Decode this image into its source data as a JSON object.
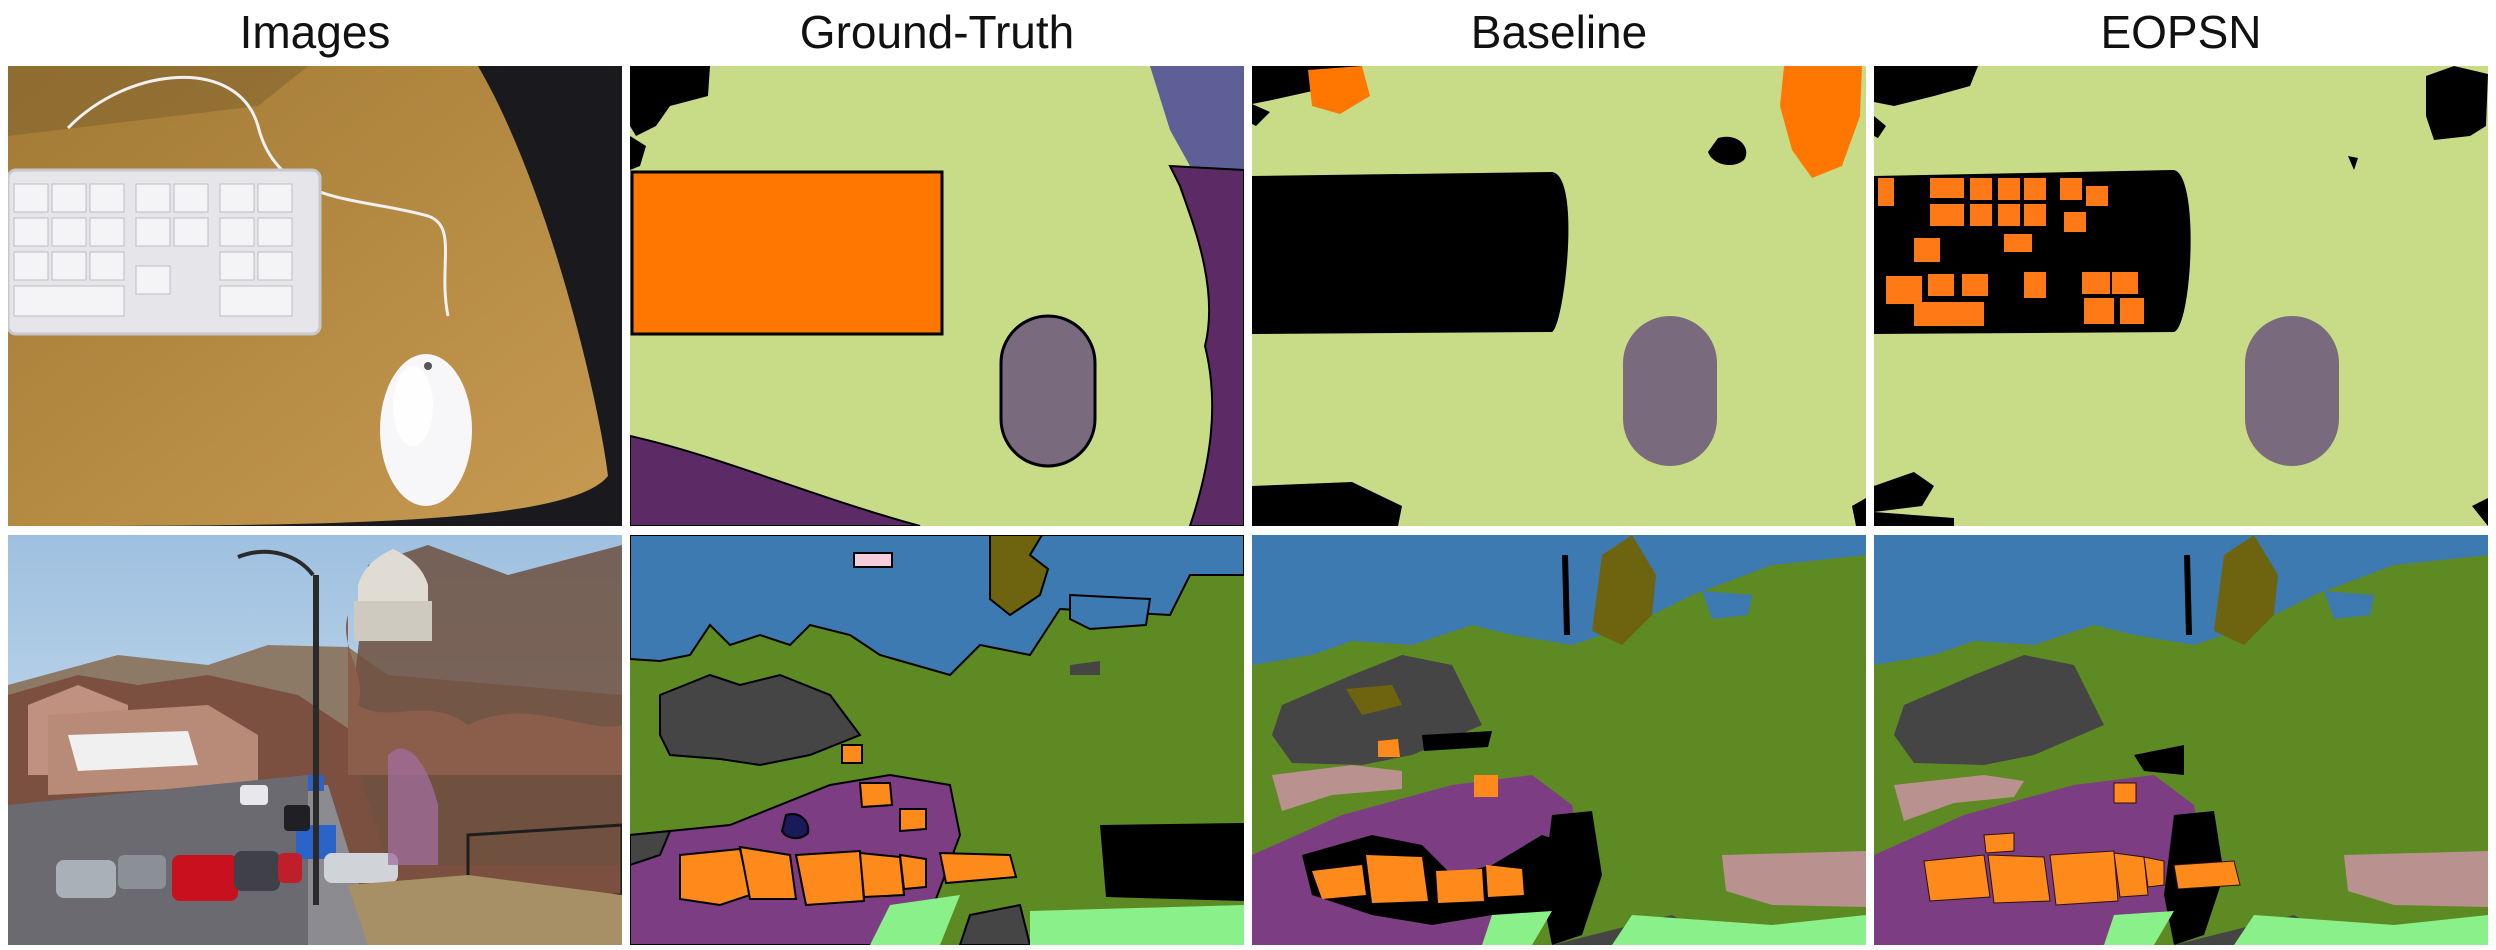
{
  "columns": [
    "Images",
    "Ground-Truth",
    "Baseline",
    "EOPSN"
  ],
  "colors": {
    "light_green": "#c8dc88",
    "orange": "#ff7700",
    "gray_purple": "#7a6a7e",
    "dark_purple": "#5c2a64",
    "slate": "#5e5f96",
    "black": "#000000",
    "sky_blue": "#3d7ab2",
    "olive_green": "#5e8a24",
    "dark_gray": "#454545",
    "purple": "#7c3d82",
    "mint": "#8af08a",
    "pinkish": "#b9918f",
    "olive": "#6e6410"
  }
}
